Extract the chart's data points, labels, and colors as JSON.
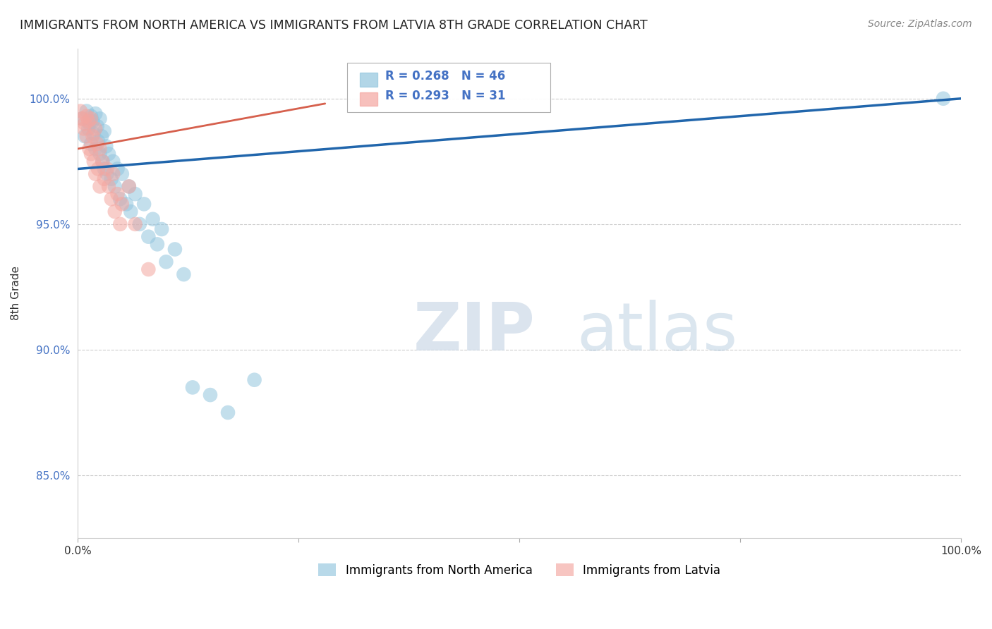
{
  "title": "IMMIGRANTS FROM NORTH AMERICA VS IMMIGRANTS FROM LATVIA 8TH GRADE CORRELATION CHART",
  "source": "Source: ZipAtlas.com",
  "ylabel": "8th Grade",
  "xlim": [
    0.0,
    1.0
  ],
  "ylim": [
    82.5,
    102.0
  ],
  "blue_R": 0.268,
  "blue_N": 46,
  "pink_R": 0.293,
  "pink_N": 31,
  "blue_color": "#92c5de",
  "pink_color": "#f4a6a0",
  "trend_blue": "#2166ac",
  "trend_pink": "#d6604d",
  "watermark_zip": "ZIP",
  "watermark_atlas": "atlas",
  "legend_label_blue": "Immigrants from North America",
  "legend_label_pink": "Immigrants from Latvia",
  "blue_x": [
    0.005,
    0.008,
    0.01,
    0.012,
    0.013,
    0.015,
    0.015,
    0.017,
    0.018,
    0.02,
    0.02,
    0.022,
    0.023,
    0.025,
    0.025,
    0.027,
    0.028,
    0.03,
    0.03,
    0.032,
    0.033,
    0.035,
    0.038,
    0.04,
    0.042,
    0.045,
    0.048,
    0.05,
    0.055,
    0.058,
    0.06,
    0.065,
    0.07,
    0.075,
    0.08,
    0.085,
    0.09,
    0.095,
    0.1,
    0.11,
    0.12,
    0.13,
    0.15,
    0.17,
    0.2,
    0.98
  ],
  "blue_y": [
    99.2,
    98.5,
    99.5,
    98.8,
    99.0,
    99.3,
    98.2,
    99.1,
    98.6,
    99.4,
    98.0,
    98.9,
    98.3,
    99.2,
    97.8,
    98.5,
    97.5,
    98.7,
    97.2,
    98.1,
    97.0,
    97.8,
    96.8,
    97.5,
    96.5,
    97.2,
    96.0,
    97.0,
    95.8,
    96.5,
    95.5,
    96.2,
    95.0,
    95.8,
    94.5,
    95.2,
    94.2,
    94.8,
    93.5,
    94.0,
    93.0,
    88.5,
    88.2,
    87.5,
    88.8,
    100.0
  ],
  "pink_x": [
    0.003,
    0.005,
    0.007,
    0.008,
    0.01,
    0.01,
    0.012,
    0.013,
    0.015,
    0.015,
    0.017,
    0.018,
    0.02,
    0.02,
    0.022,
    0.023,
    0.025,
    0.025,
    0.028,
    0.03,
    0.033,
    0.035,
    0.038,
    0.04,
    0.042,
    0.045,
    0.048,
    0.05,
    0.058,
    0.065,
    0.08
  ],
  "pink_y": [
    99.5,
    99.2,
    98.8,
    99.0,
    99.3,
    98.5,
    99.1,
    98.0,
    99.2,
    97.8,
    98.5,
    97.5,
    98.8,
    97.0,
    98.2,
    97.2,
    98.0,
    96.5,
    97.5,
    96.8,
    97.2,
    96.5,
    96.0,
    97.0,
    95.5,
    96.2,
    95.0,
    95.8,
    96.5,
    95.0,
    93.2
  ]
}
